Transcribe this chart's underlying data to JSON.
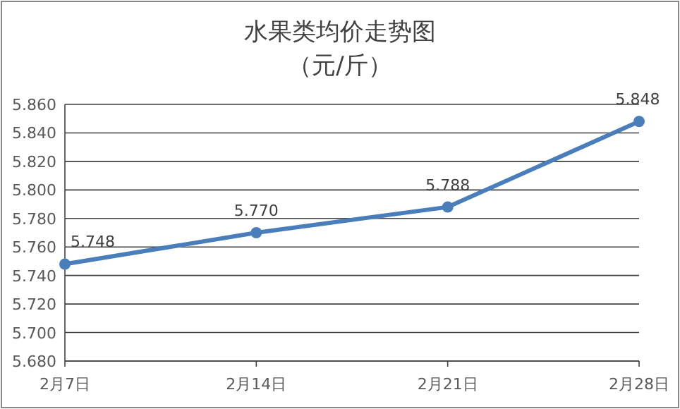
{
  "chart_data": {
    "type": "line",
    "title": "水果类均价走势图",
    "subtitle": "（元/斤）",
    "categories": [
      "2月7日",
      "2月14日",
      "2月21日",
      "2月28日"
    ],
    "series": [
      {
        "color": "#4a7ebb",
        "values": [
          5.748,
          5.77,
          5.788,
          5.848
        ],
        "value_labels": [
          "5.748",
          "5.770",
          "5.788",
          "5.848"
        ]
      }
    ],
    "ylim": [
      5.68,
      5.86
    ],
    "yticks": [
      {
        "value": 5.68,
        "label": "5.680"
      },
      {
        "value": 5.7,
        "label": "5.700"
      },
      {
        "value": 5.72,
        "label": "5.720"
      },
      {
        "value": 5.74,
        "label": "5.740"
      },
      {
        "value": 5.76,
        "label": "5.760"
      },
      {
        "value": 5.78,
        "label": "5.780"
      },
      {
        "value": 5.8,
        "label": "5.800"
      },
      {
        "value": 5.82,
        "label": "5.820"
      },
      {
        "value": 5.84,
        "label": "5.840"
      },
      {
        "value": 5.86,
        "label": "5.860"
      }
    ],
    "grid": "y",
    "marker": "circle",
    "line_style": "solid"
  }
}
